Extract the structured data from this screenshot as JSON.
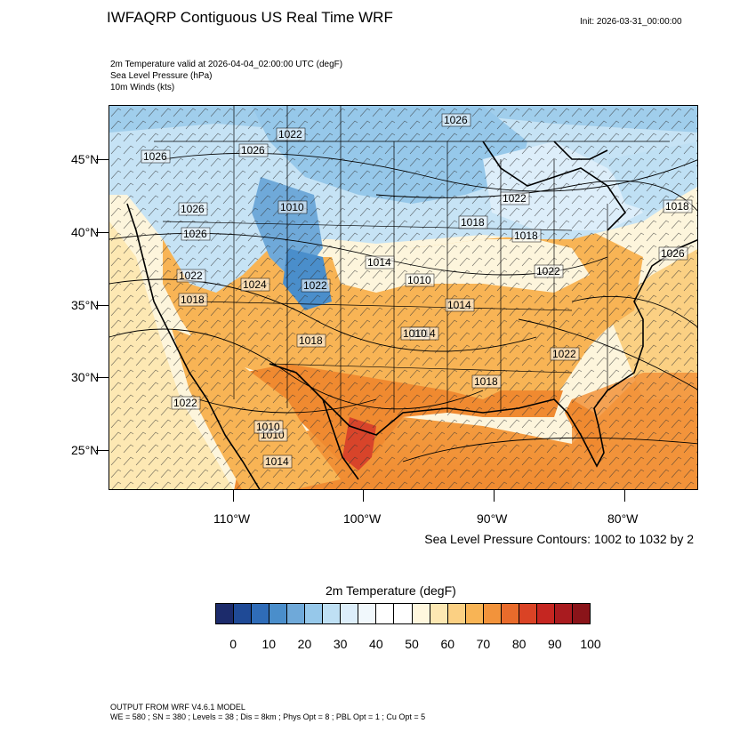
{
  "header": {
    "title": "IWFAQRP Contiguous US Real Time WRF",
    "init": "Init: 2026-03-31_00:00:00",
    "subtitle_lines": [
      "2m Temperature valid at 2026-04-04_02:00:00 UTC   (degF)",
      "Sea Level Pressure   (hPa)",
      "10m Winds   (kts)"
    ]
  },
  "map": {
    "lat_labels": [
      "45°N",
      "40°N",
      "35°N",
      "30°N",
      "25°N"
    ],
    "lon_labels": [
      "110°W",
      "100°W",
      "90°W",
      "80°W"
    ],
    "pressure_labels": [
      "1026",
      "1022",
      "1026",
      "1026",
      "1026",
      "1026",
      "1022",
      "1018",
      "1022",
      "1024",
      "1022",
      "1018",
      "1014",
      "1010",
      "1018",
      "1014",
      "1022",
      "1018",
      "1026",
      "1022",
      "1018",
      "1010",
      "1014",
      "1010",
      "1018",
      "1022",
      "1014",
      "1010",
      "1010"
    ],
    "contours_note": "Sea Level Pressure Contours: 1002 to 1032 by 2",
    "colors": {
      "cold": "#6baed6",
      "cool": "#c6e3f5",
      "mild": "#fdf5dc",
      "warm": "#f9c46b",
      "hot": "#f08a30",
      "very_hot": "#d8442a"
    }
  },
  "colorbar": {
    "title": "2m Temperature  (degF)",
    "colors": [
      "#1c2b6b",
      "#1f4a96",
      "#2f6cb8",
      "#4a8ecb",
      "#6fa9d9",
      "#96c8ea",
      "#bfe0f4",
      "#ddeefa",
      "#f1f8fc",
      "#ffffff",
      "#ffffff",
      "#fff7de",
      "#fde8b3",
      "#fbd083",
      "#f8b455",
      "#f2933b",
      "#e96b2b",
      "#da4325",
      "#c52621",
      "#a91b1f",
      "#8a1419"
    ],
    "tick_labels": [
      "0",
      "10",
      "20",
      "30",
      "40",
      "50",
      "60",
      "70",
      "80",
      "90",
      "100"
    ]
  },
  "footer": {
    "line1": "OUTPUT FROM WRF V4.6.1 MODEL",
    "line2": "WE = 580 ; SN = 380 ; Levels = 38 ; Dis = 8km ; Phys Opt = 8 ; PBL Opt = 1 ; Cu Opt = 5"
  }
}
